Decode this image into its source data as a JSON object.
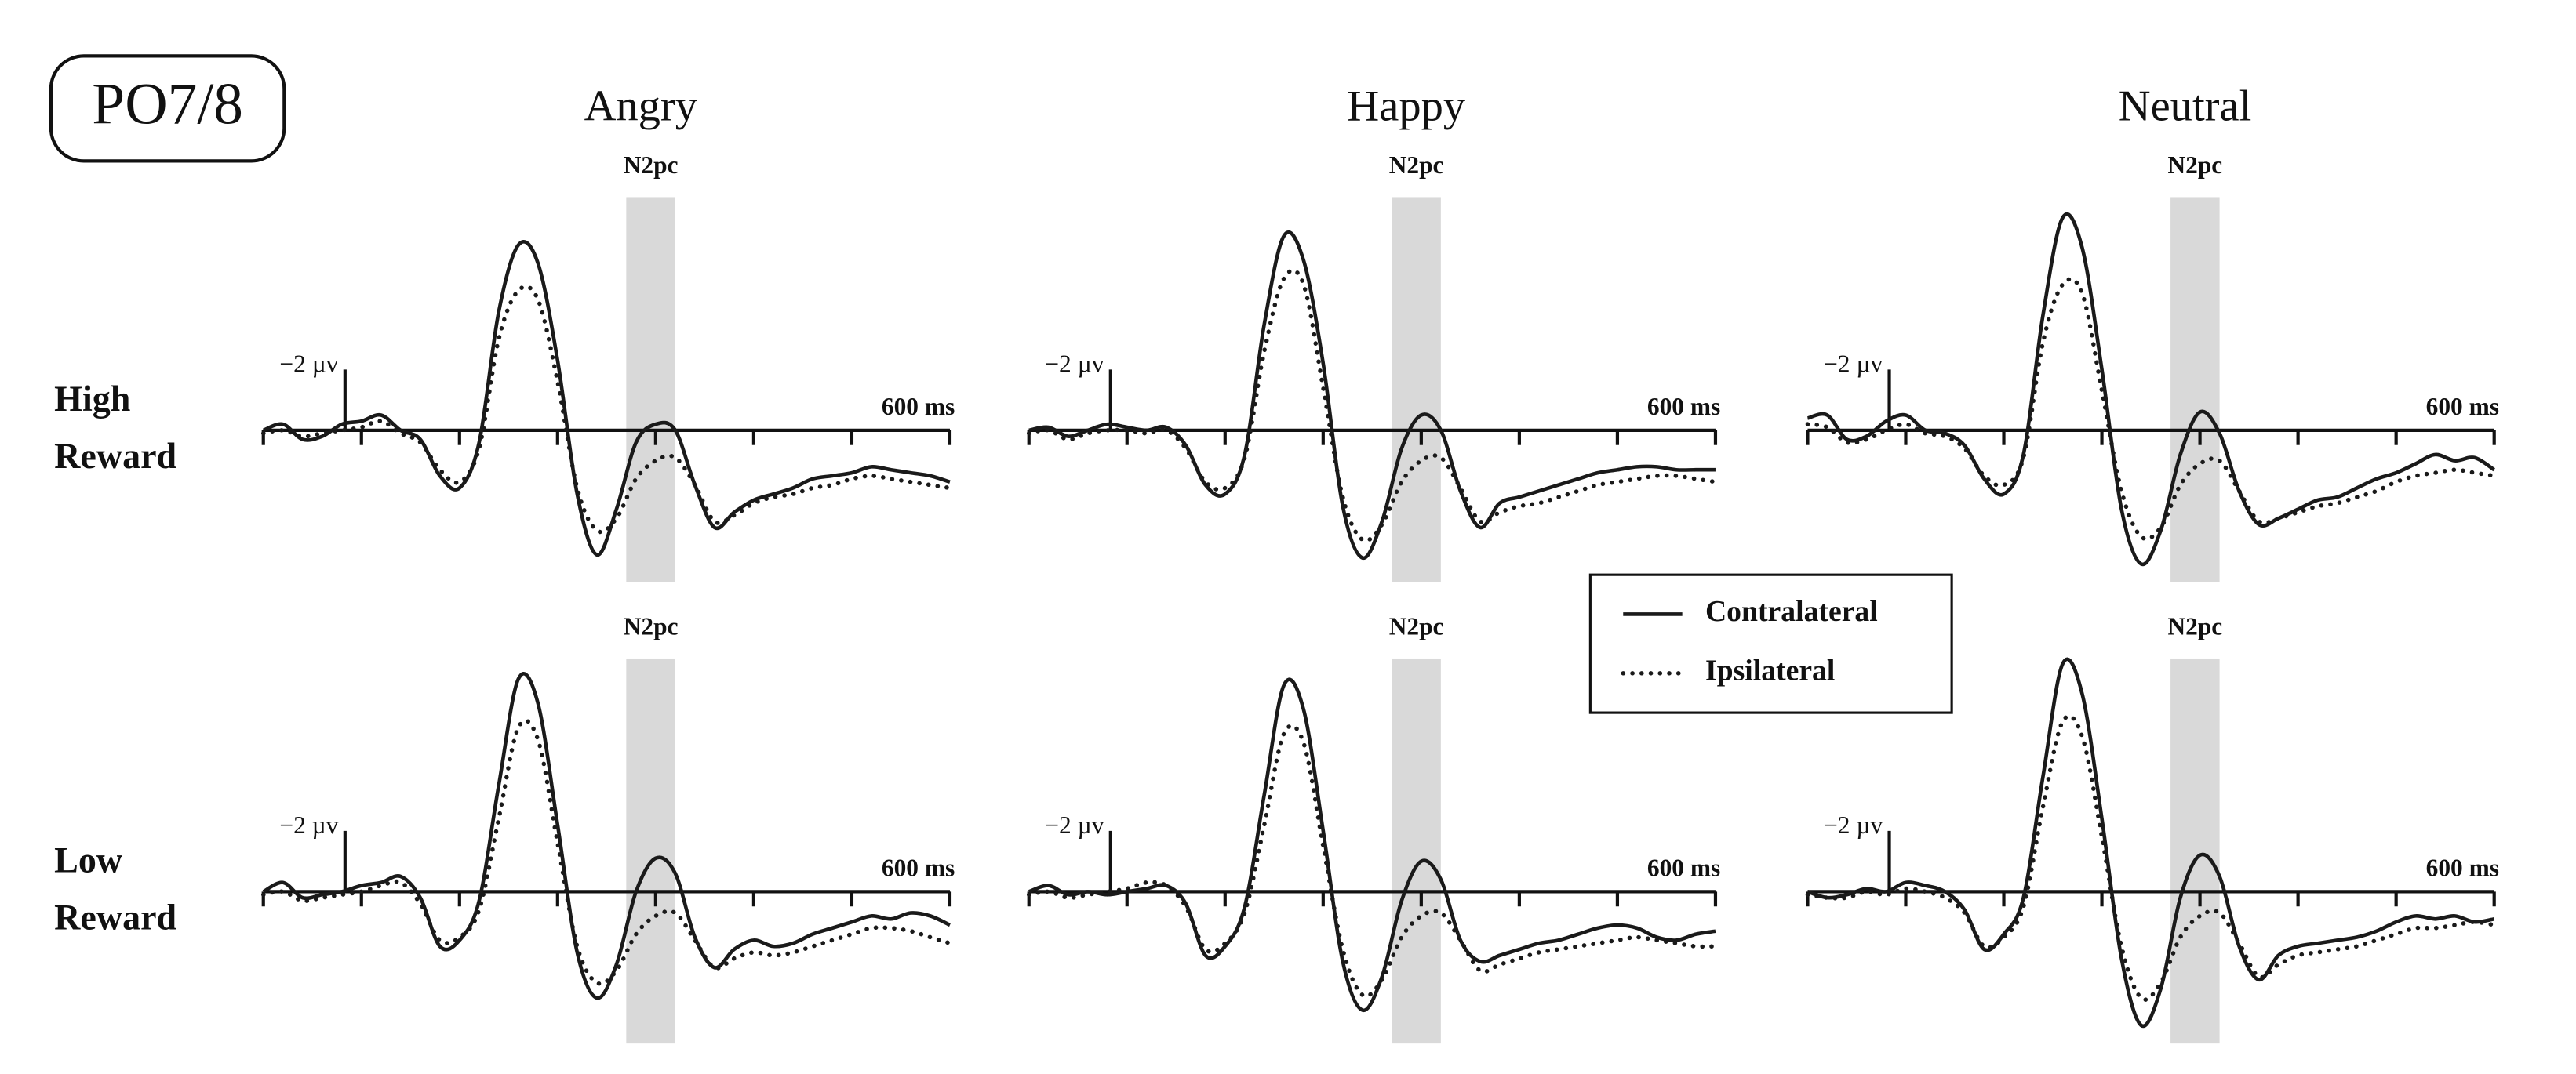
{
  "panel_label": "PO7/8",
  "chart_data": [
    {
      "type": "line",
      "title": "Angry",
      "row_label": [
        "High",
        "Reward"
      ],
      "xlim": [
        -100,
        600
      ],
      "ylim": [
        5,
        -8
      ],
      "xtick_marks": [
        -100,
        0,
        100,
        200,
        300,
        400,
        500
      ],
      "xticks": [
        {
          "value": 600,
          "label": "600 ms"
        }
      ],
      "scale_bar": {
        "value": -2,
        "label": "−2 µv"
      },
      "shade": {
        "label": "N2pc",
        "range": [
          270,
          320
        ],
        "color": "#d9d9d9"
      },
      "x": [
        -100,
        -80,
        -60,
        -40,
        -20,
        0,
        20,
        40,
        60,
        80,
        100,
        120,
        140,
        160,
        180,
        200,
        220,
        240,
        260,
        280,
        300,
        320,
        340,
        360,
        380,
        400,
        420,
        440,
        460,
        480,
        500,
        520,
        540,
        560,
        580,
        600
      ],
      "series": [
        {
          "name": "Contralateral",
          "style": "solid",
          "color": "#1a1a1a",
          "values": [
            0,
            -0.2,
            0.3,
            0.2,
            -0.2,
            -0.3,
            -0.5,
            0,
            0.3,
            1.5,
            1.9,
            0.4,
            -3.9,
            -6.1,
            -5.5,
            -2.3,
            2.1,
            4.1,
            2.6,
            0.4,
            -0.2,
            0,
            1.8,
            3.2,
            2.7,
            2.3,
            2.1,
            1.9,
            1.6,
            1.5,
            1.4,
            1.2,
            1.3,
            1.4,
            1.5,
            1.7
          ]
        },
        {
          "name": "Ipsilateral",
          "style": "dotted",
          "color": "#1a1a1a",
          "values": [
            0.1,
            0,
            0.2,
            0.1,
            0,
            -0.1,
            -0.3,
            0.1,
            0.4,
            1.3,
            1.7,
            0.6,
            -3,
            -4.6,
            -4.3,
            -1.6,
            1.9,
            3.3,
            2.9,
            1.6,
            1,
            0.9,
            1.8,
            3,
            2.8,
            2.4,
            2.2,
            2.1,
            1.9,
            1.8,
            1.6,
            1.5,
            1.6,
            1.7,
            1.8,
            1.9
          ]
        }
      ]
    },
    {
      "type": "line",
      "title": "Happy",
      "xlim": [
        -100,
        600
      ],
      "ylim": [
        5,
        -8
      ],
      "xtick_marks": [
        -100,
        0,
        100,
        200,
        300,
        400,
        500
      ],
      "xticks": [
        {
          "value": 600,
          "label": "600 ms"
        }
      ],
      "scale_bar": {
        "value": -2,
        "label": "−2 µv"
      },
      "shade": {
        "label": "N2pc",
        "range": [
          270,
          320
        ],
        "color": "#d9d9d9"
      },
      "x": [
        -100,
        -80,
        -60,
        -40,
        -20,
        0,
        20,
        40,
        60,
        80,
        100,
        120,
        140,
        160,
        180,
        200,
        220,
        240,
        260,
        280,
        300,
        320,
        340,
        360,
        380,
        400,
        420,
        440,
        460,
        480,
        500,
        520,
        540,
        560,
        580,
        600
      ],
      "series": [
        {
          "style": "solid",
          "color": "#1a1a1a",
          "values": [
            0,
            -0.1,
            0.2,
            0,
            -0.2,
            -0.1,
            0,
            -0.1,
            0.5,
            1.8,
            2.1,
            0.8,
            -3.5,
            -6.4,
            -5.6,
            -2.2,
            2.5,
            4.2,
            3,
            0.6,
            -0.5,
            0,
            2,
            3.2,
            2.4,
            2.2,
            2,
            1.8,
            1.6,
            1.4,
            1.3,
            1.2,
            1.2,
            1.3,
            1.3,
            1.3
          ]
        },
        {
          "style": "dotted",
          "color": "#1a1a1a",
          "values": [
            0.1,
            0,
            0.3,
            0.1,
            0,
            0,
            0.1,
            0,
            0.6,
            1.7,
            1.9,
            0.9,
            -2.6,
            -5,
            -4.8,
            -1.4,
            2.2,
            3.6,
            3.1,
            1.7,
            1,
            0.9,
            1.9,
            3,
            2.7,
            2.5,
            2.4,
            2.2,
            2,
            1.8,
            1.7,
            1.6,
            1.5,
            1.5,
            1.6,
            1.7
          ]
        }
      ]
    },
    {
      "type": "line",
      "title": "Neutral",
      "xlim": [
        -100,
        600
      ],
      "ylim": [
        5,
        -8
      ],
      "xtick_marks": [
        -100,
        0,
        100,
        200,
        300,
        400,
        500
      ],
      "xticks": [
        {
          "value": 600,
          "label": "600 ms"
        }
      ],
      "scale_bar": {
        "value": -2,
        "label": "−2 µv"
      },
      "shade": {
        "label": "N2pc",
        "range": [
          270,
          320
        ],
        "color": "#d9d9d9"
      },
      "x": [
        -100,
        -80,
        -60,
        -40,
        -20,
        0,
        20,
        40,
        60,
        80,
        100,
        120,
        140,
        160,
        180,
        200,
        220,
        240,
        260,
        280,
        300,
        320,
        340,
        360,
        380,
        400,
        420,
        440,
        460,
        480,
        500,
        520,
        540,
        560,
        580,
        600
      ],
      "series": [
        {
          "style": "solid",
          "color": "#1a1a1a",
          "values": [
            -0.4,
            -0.5,
            0.3,
            0.2,
            -0.3,
            -0.5,
            0,
            0.1,
            0.5,
            1.6,
            2.1,
            0.8,
            -3.8,
            -7,
            -6,
            -2,
            2.6,
            4.4,
            3.3,
            0.8,
            -0.6,
            0.1,
            2,
            3.1,
            2.9,
            2.6,
            2.3,
            2.2,
            1.9,
            1.6,
            1.4,
            1.1,
            0.8,
            1,
            0.9,
            1.3
          ]
        },
        {
          "style": "dotted",
          "color": "#1a1a1a",
          "values": [
            -0.2,
            -0.1,
            0.4,
            0.3,
            0,
            -0.2,
            0.1,
            0.2,
            0.6,
            1.5,
            1.8,
            0.9,
            -2.9,
            -4.8,
            -4.5,
            -1.3,
            2,
            3.5,
            3.2,
            1.8,
            1.1,
            1,
            2,
            3,
            2.9,
            2.7,
            2.5,
            2.4,
            2.2,
            2,
            1.7,
            1.5,
            1.4,
            1.3,
            1.4,
            1.5
          ]
        }
      ]
    },
    {
      "type": "line",
      "row_label": [
        "Low",
        "Reward"
      ],
      "xlim": [
        -100,
        600
      ],
      "ylim": [
        5,
        -8
      ],
      "xtick_marks": [
        -100,
        0,
        100,
        200,
        300,
        400,
        500
      ],
      "xticks": [
        {
          "value": 600,
          "label": "600 ms"
        }
      ],
      "scale_bar": {
        "value": -2,
        "label": "−2 µv"
      },
      "shade": {
        "label": "N2pc",
        "range": [
          270,
          320
        ],
        "color": "#d9d9d9"
      },
      "x": [
        -100,
        -80,
        -60,
        -40,
        -20,
        0,
        20,
        40,
        60,
        80,
        100,
        120,
        140,
        160,
        180,
        200,
        220,
        240,
        260,
        280,
        300,
        320,
        340,
        360,
        380,
        400,
        420,
        440,
        460,
        480,
        500,
        520,
        540,
        560,
        580,
        600
      ],
      "series": [
        {
          "style": "solid",
          "color": "#1a1a1a",
          "values": [
            0,
            -0.3,
            0.2,
            0.1,
            0,
            -0.2,
            -0.3,
            -0.5,
            0.2,
            1.8,
            1.6,
            0.3,
            -3.5,
            -7,
            -6.2,
            -2.2,
            2,
            3.5,
            2.4,
            0,
            -1.1,
            -0.6,
            1.5,
            2.5,
            1.9,
            1.6,
            1.8,
            1.7,
            1.4,
            1.2,
            1,
            0.8,
            0.9,
            0.7,
            0.8,
            1.1
          ]
        },
        {
          "style": "dotted",
          "color": "#1a1a1a",
          "values": [
            0.1,
            0,
            0.3,
            0.2,
            0.1,
            0,
            -0.2,
            -0.3,
            0.4,
            1.6,
            1.5,
            0.6,
            -2.4,
            -5.4,
            -5,
            -1.6,
            1.8,
            3,
            2.6,
            1.4,
            0.8,
            0.7,
            1.6,
            2.5,
            2.2,
            2,
            2.1,
            2,
            1.8,
            1.6,
            1.4,
            1.2,
            1.2,
            1.3,
            1.5,
            1.7
          ]
        }
      ]
    },
    {
      "type": "line",
      "xlim": [
        -100,
        600
      ],
      "ylim": [
        5,
        -8
      ],
      "xtick_marks": [
        -100,
        0,
        100,
        200,
        300,
        400,
        500
      ],
      "xticks": [
        {
          "value": 600,
          "label": "600 ms"
        }
      ],
      "scale_bar": {
        "value": -2,
        "label": "−2 µv"
      },
      "shade": {
        "label": "N2pc",
        "range": [
          270,
          320
        ],
        "color": "#d9d9d9"
      },
      "x": [
        -100,
        -80,
        -60,
        -40,
        -20,
        0,
        20,
        40,
        60,
        80,
        100,
        120,
        140,
        160,
        180,
        200,
        220,
        240,
        260,
        280,
        300,
        320,
        340,
        360,
        380,
        400,
        420,
        440,
        460,
        480,
        500,
        520,
        540,
        560,
        580,
        600
      ],
      "series": [
        {
          "style": "solid",
          "color": "#1a1a1a",
          "values": [
            0,
            -0.2,
            0.1,
            0,
            0.1,
            0,
            -0.1,
            -0.2,
            0.4,
            2.1,
            1.8,
            0.5,
            -3.2,
            -6.8,
            -6,
            -2,
            2.3,
            3.9,
            2.8,
            0.3,
            -1,
            -0.4,
            1.6,
            2.3,
            2.1,
            1.9,
            1.7,
            1.6,
            1.4,
            1.2,
            1.1,
            1.2,
            1.5,
            1.6,
            1.4,
            1.3
          ]
        },
        {
          "style": "dotted",
          "color": "#1a1a1a",
          "values": [
            0.1,
            0,
            0.2,
            0.1,
            0,
            -0.1,
            -0.3,
            -0.2,
            0.5,
            1.9,
            1.7,
            0.7,
            -2.2,
            -5.2,
            -4.9,
            -1.5,
            1.9,
            3.4,
            2.9,
            1.5,
            0.8,
            0.7,
            1.6,
            2.6,
            2.4,
            2.2,
            2,
            1.9,
            1.8,
            1.7,
            1.6,
            1.5,
            1.6,
            1.7,
            1.8,
            1.8
          ]
        }
      ]
    },
    {
      "type": "line",
      "xlim": [
        -100,
        600
      ],
      "ylim": [
        5,
        -8
      ],
      "xtick_marks": [
        -100,
        0,
        100,
        200,
        300,
        400,
        500
      ],
      "xticks": [
        {
          "value": 600,
          "label": "600 ms"
        }
      ],
      "scale_bar": {
        "value": -2,
        "label": "−2 µv"
      },
      "shade": {
        "label": "N2pc",
        "range": [
          270,
          320
        ],
        "color": "#d9d9d9"
      },
      "x": [
        -100,
        -80,
        -60,
        -40,
        -20,
        0,
        20,
        40,
        60,
        80,
        100,
        120,
        140,
        160,
        180,
        200,
        220,
        240,
        260,
        280,
        300,
        320,
        340,
        360,
        380,
        400,
        420,
        440,
        460,
        480,
        500,
        520,
        540,
        560,
        580,
        600
      ],
      "series": [
        {
          "style": "solid",
          "color": "#1a1a1a",
          "values": [
            0,
            0.2,
            0.1,
            -0.1,
            0,
            -0.3,
            -0.2,
            0,
            0.6,
            1.9,
            1.4,
            0.2,
            -3.8,
            -7.5,
            -6.5,
            -2.4,
            2.2,
            4.4,
            3.2,
            0.2,
            -1.2,
            -0.5,
            1.8,
            2.9,
            2.1,
            1.8,
            1.7,
            1.6,
            1.5,
            1.3,
            1,
            0.8,
            0.9,
            0.8,
            1,
            0.9
          ]
        },
        {
          "style": "dotted",
          "color": "#1a1a1a",
          "values": [
            0.1,
            0.2,
            0.2,
            0,
            0.1,
            -0.1,
            0,
            0.2,
            0.7,
            1.8,
            1.5,
            0.5,
            -2.8,
            -5.6,
            -5.1,
            -1.8,
            1.8,
            3.5,
            3,
            1.5,
            0.8,
            0.7,
            1.7,
            2.8,
            2.4,
            2.1,
            2,
            1.9,
            1.8,
            1.6,
            1.4,
            1.2,
            1.2,
            1.1,
            1,
            1.1
          ]
        }
      ]
    }
  ]
}
